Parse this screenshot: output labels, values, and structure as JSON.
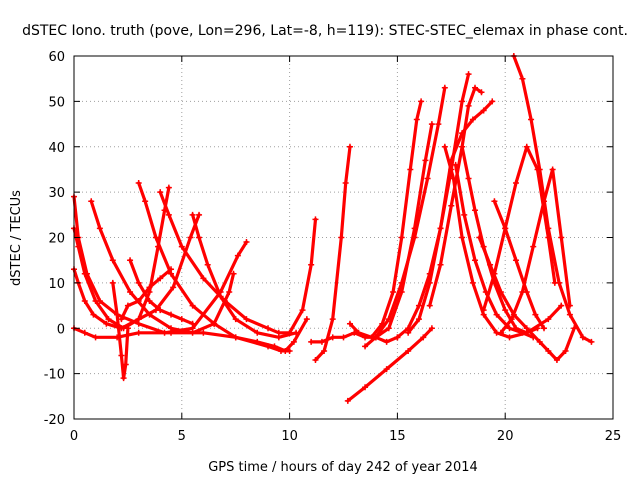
{
  "chart_data": {
    "type": "line",
    "title": "dSTEC Iono. truth (pove, Lon=296, Lat=-8, h=119): STEC-STEC_elemax in phase cont.",
    "xlabel": "GPS time / hours of day 242 of year 2014",
    "ylabel": "dSTEC  / TECUs",
    "xlim": [
      0,
      25
    ],
    "ylim": [
      -20,
      60
    ],
    "xticks": [
      0,
      5,
      10,
      15,
      20,
      25
    ],
    "yticks": [
      -20,
      -10,
      0,
      10,
      20,
      30,
      40,
      50,
      60
    ],
    "grid": true,
    "legend": "none",
    "color": "#ff0000",
    "series": [
      {
        "x": [
          0.0,
          0.2,
          0.6,
          1.2,
          2.0,
          3.0,
          4.2,
          5.5,
          6.8,
          7.6,
          8.0
        ],
        "y": [
          29,
          20,
          12,
          6,
          3,
          1,
          -1,
          0,
          8,
          16,
          19
        ]
      },
      {
        "x": [
          0.0,
          0.2,
          0.5,
          1.0,
          1.6,
          2.3,
          3.0,
          3.5,
          3.9,
          4.2,
          4.4
        ],
        "y": [
          22,
          18,
          12,
          6,
          2,
          0,
          2,
          8,
          18,
          26,
          31
        ]
      },
      {
        "x": [
          0.0,
          0.2,
          0.5,
          0.9,
          1.5,
          2.2,
          3.0,
          3.8,
          4.6,
          5.4,
          5.8
        ],
        "y": [
          13,
          10,
          6,
          3,
          1,
          0,
          2,
          4,
          9,
          20,
          25
        ]
      },
      {
        "x": [
          0.0,
          0.5,
          1.0,
          2.0,
          3.0,
          4.5,
          6.0,
          7.5,
          9.0,
          9.6,
          10.0
        ],
        "y": [
          0,
          -1,
          -2,
          -2,
          -1,
          -1,
          -1,
          -2,
          -4,
          -5,
          -5
        ]
      },
      {
        "x": [
          0.8,
          1.2,
          1.8,
          2.6,
          3.5,
          4.5,
          5.5,
          6.5,
          7.2,
          7.4
        ],
        "y": [
          28,
          22,
          15,
          8,
          3,
          0,
          -1,
          1,
          8,
          12
        ]
      },
      {
        "x": [
          1.8,
          2.0,
          2.2,
          2.3,
          2.4,
          2.5
        ],
        "y": [
          10,
          3,
          -6,
          -11,
          -8,
          0
        ]
      },
      {
        "x": [
          2.2,
          2.5,
          3.0,
          3.5,
          4.0,
          4.5
        ],
        "y": [
          2,
          5,
          6,
          9,
          11,
          13
        ]
      },
      {
        "x": [
          2.6,
          3.0,
          3.5,
          4.0,
          4.5,
          5.0,
          5.5
        ],
        "y": [
          15,
          10,
          6,
          4,
          3,
          2,
          1
        ]
      },
      {
        "x": [
          3.0,
          3.3,
          3.8,
          4.5,
          5.5,
          6.5,
          7.5,
          8.5,
          9.3,
          9.8,
          10.2,
          10.8
        ],
        "y": [
          32,
          28,
          20,
          12,
          5,
          1,
          -2,
          -3,
          -4,
          -5,
          -3,
          2
        ]
      },
      {
        "x": [
          4.0,
          4.4,
          5.0,
          6.0,
          7.0,
          8.0,
          9.0,
          9.5,
          10.0,
          10.6,
          11.0,
          11.2
        ],
        "y": [
          30,
          25,
          18,
          11,
          6,
          2,
          0,
          -1,
          -1,
          4,
          14,
          24
        ]
      },
      {
        "x": [
          5.5,
          5.8,
          6.2,
          6.8,
          7.5,
          8.5,
          9.5,
          10.3
        ],
        "y": [
          25,
          20,
          14,
          7,
          2,
          -1,
          -2,
          -1
        ]
      },
      {
        "x": [
          11.2,
          11.6,
          12.0,
          12.4,
          12.6,
          12.8
        ],
        "y": [
          -7,
          -5,
          2,
          20,
          32,
          40
        ]
      },
      {
        "x": [
          11.0,
          11.5,
          12.0,
          12.5,
          13.0,
          13.5,
          14.0,
          14.5,
          15.0
        ],
        "y": [
          -3,
          -3,
          -2,
          -2,
          -1,
          -2,
          -2,
          -3,
          -2
        ]
      },
      {
        "x": [
          12.7,
          13.5,
          14.5,
          15.5,
          16.2,
          16.6
        ],
        "y": [
          -16,
          -13,
          -9,
          -5,
          -2,
          0
        ]
      },
      {
        "x": [
          12.8,
          13.2,
          13.8,
          14.3,
          14.8,
          15.2,
          15.6,
          15.9,
          16.1
        ],
        "y": [
          1,
          -1,
          -2,
          1,
          8,
          20,
          35,
          46,
          50
        ]
      },
      {
        "x": [
          13.5,
          14.0,
          14.6,
          15.2,
          15.8,
          16.4,
          16.9,
          17.2
        ],
        "y": [
          -4,
          -2,
          2,
          10,
          20,
          33,
          45,
          53
        ]
      },
      {
        "x": [
          14.0,
          14.6,
          15.2,
          15.8,
          16.3,
          16.6
        ],
        "y": [
          -2,
          0,
          8,
          22,
          37,
          45
        ]
      },
      {
        "x": [
          15.0,
          15.5,
          16.0,
          16.5,
          17.0,
          17.5,
          18.0,
          18.3
        ],
        "y": [
          -2,
          0,
          5,
          12,
          22,
          35,
          50,
          56
        ]
      },
      {
        "x": [
          15.5,
          16.0,
          16.5,
          17.0,
          17.5,
          18.0,
          18.5,
          19.0,
          19.4
        ],
        "y": [
          -1,
          2,
          10,
          22,
          37,
          43,
          46,
          48,
          50
        ]
      },
      {
        "x": [
          16.5,
          17.0,
          17.5,
          18.0,
          18.3,
          18.6,
          18.9
        ],
        "y": [
          5,
          14,
          27,
          40,
          49,
          53,
          52
        ]
      },
      {
        "x": [
          17.2,
          17.6,
          18.0,
          18.5,
          19.0,
          19.6,
          20.2,
          21.0,
          22.0,
          22.6
        ],
        "y": [
          40,
          33,
          20,
          10,
          3,
          -1,
          -2,
          -1,
          2,
          5
        ]
      },
      {
        "x": [
          17.7,
          18.1,
          18.6,
          19.1,
          19.6,
          20.2,
          20.8,
          21.3
        ],
        "y": [
          36,
          25,
          15,
          8,
          3,
          0,
          -1,
          -2
        ]
      },
      {
        "x": [
          18.0,
          18.3,
          18.6,
          19.0,
          19.5,
          20.0,
          20.5,
          21.0,
          21.5
        ],
        "y": [
          40,
          33,
          26,
          18,
          10,
          4,
          0,
          -1,
          0
        ]
      },
      {
        "x": [
          19.0,
          19.5,
          20.0,
          20.5,
          21.0,
          21.5,
          22.0,
          22.3
        ],
        "y": [
          4,
          12,
          22,
          32,
          40,
          35,
          20,
          10
        ]
      },
      {
        "x": [
          19.5,
          20.0,
          20.5,
          21.0,
          21.4,
          21.8
        ],
        "y": [
          28,
          22,
          15,
          8,
          3,
          0
        ]
      },
      {
        "x": [
          20.4,
          20.8,
          21.2,
          21.6,
          22.0,
          22.5,
          23.0,
          23.6,
          24.0
        ],
        "y": [
          60,
          55,
          46,
          35,
          22,
          10,
          3,
          -2,
          -3
        ]
      },
      {
        "x": [
          19.8,
          20.3,
          20.8,
          21.3,
          21.8,
          22.2,
          22.6,
          23.0
        ],
        "y": [
          -1,
          2,
          8,
          18,
          28,
          35,
          20,
          5
        ]
      },
      {
        "x": [
          18.8,
          19.3,
          19.8,
          20.4,
          21.0,
          21.6,
          22.0,
          22.4,
          22.8,
          23.2
        ],
        "y": [
          20,
          14,
          8,
          3,
          0,
          -3,
          -5,
          -7,
          -5,
          0
        ]
      }
    ]
  }
}
